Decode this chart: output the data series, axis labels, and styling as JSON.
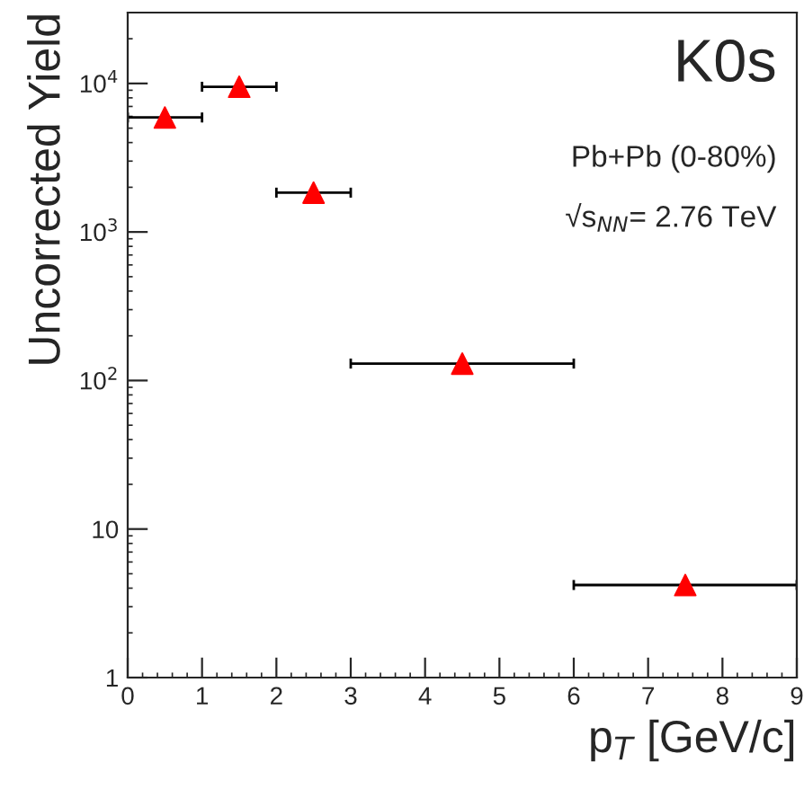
{
  "chart_data": {
    "type": "scatter",
    "xlabel": "p$_{T}$ [GeV/c]",
    "ylabel": "Uncorrected Yield",
    "x": [
      0.5,
      1.5,
      2.5,
      4.5,
      7.5
    ],
    "series": [
      {
        "color": "#ff0000",
        "values": [
          5900,
          9500,
          1840,
          130,
          4.2
        ],
        "xerrors": [
          0.5,
          0.5,
          0.5,
          1.5,
          1.5
        ]
      }
    ],
    "marker": "triangle",
    "log": "y",
    "grid": false,
    "legend": false,
    "xlim": [
      0,
      9
    ],
    "xticks": [
      0,
      1,
      2,
      3,
      4,
      5,
      6,
      7,
      8,
      9
    ],
    "ylim": [
      1,
      30000
    ],
    "yticks": [
      1,
      10,
      {
        "value": 100,
        "label": "10$^{2}$"
      },
      {
        "value": 1000,
        "label": "10$^{3}$"
      },
      {
        "value": 10000,
        "label": "10$^{4}$"
      }
    ],
    "annotations": [
      "K0s",
      "Pb+Pb (0-80%)",
      "√s$_{NN}$= 2.76 TeV"
    ]
  }
}
